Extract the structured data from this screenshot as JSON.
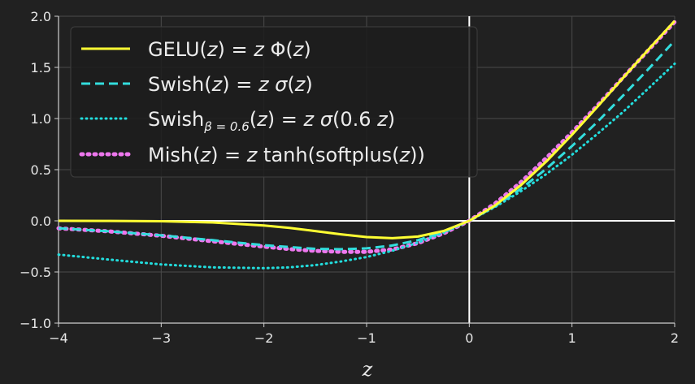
{
  "chart_data": {
    "type": "line",
    "xlabel": "z",
    "xlim": [
      -4,
      2
    ],
    "ylim": [
      -1,
      2
    ],
    "xticks": [
      -4,
      -3,
      -2,
      -1,
      0,
      1,
      2
    ],
    "yticks": [
      -1.0,
      -0.5,
      0.0,
      0.5,
      1.0,
      1.5,
      2.0
    ],
    "xtick_labels": [
      "−4",
      "−3",
      "−2",
      "−1",
      "0",
      "1",
      "2"
    ],
    "ytick_labels": [
      "−1.0",
      "−0.5",
      "0.0",
      "0.5",
      "1.0",
      "1.5",
      "2.0"
    ],
    "grid": true,
    "legend_position": "upper-left",
    "background": "#212121",
    "series": [
      {
        "name": "GELU(z) = z Φ(z)",
        "name_parts": [
          {
            "text": "GELU(",
            "italic": false
          },
          {
            "text": "z",
            "italic": true
          },
          {
            "text": ") = ",
            "italic": false
          },
          {
            "text": "z",
            "italic": true
          },
          {
            "text": " Φ(",
            "italic": false
          },
          {
            "text": "z",
            "italic": true
          },
          {
            "text": ")",
            "italic": false
          }
        ],
        "color": "#ffff33",
        "style": "solid",
        "x": [
          -4,
          -3.5,
          -3,
          -2.5,
          -2,
          -1.75,
          -1.5,
          -1.25,
          -1,
          -0.75,
          -0.5,
          -0.25,
          0,
          0.25,
          0.5,
          0.75,
          1,
          1.25,
          1.5,
          1.75,
          2
        ],
        "y": [
          -0.0001,
          -0.0008,
          -0.004,
          -0.016,
          -0.045,
          -0.07,
          -0.1,
          -0.132,
          -0.159,
          -0.17,
          -0.154,
          -0.099,
          0,
          0.149,
          0.346,
          0.58,
          0.841,
          1.118,
          1.4,
          1.68,
          1.955
        ]
      },
      {
        "name": "Swish(z) = z σ(z)",
        "name_parts": [
          {
            "text": "Swish(",
            "italic": false
          },
          {
            "text": "z",
            "italic": true
          },
          {
            "text": ") = ",
            "italic": false
          },
          {
            "text": "z σ",
            "italic": true
          },
          {
            "text": "(",
            "italic": false
          },
          {
            "text": "z",
            "italic": true
          },
          {
            "text": ")",
            "italic": false
          }
        ],
        "color": "#33dddd",
        "style": "dashed",
        "x": [
          -4,
          -3.5,
          -3,
          -2.5,
          -2,
          -1.75,
          -1.5,
          -1.25,
          -1,
          -0.75,
          -0.5,
          -0.25,
          0,
          0.25,
          0.5,
          0.75,
          1,
          1.25,
          1.5,
          1.75,
          2
        ],
        "y": [
          -0.072,
          -0.103,
          -0.142,
          -0.189,
          -0.238,
          -0.256,
          -0.274,
          -0.278,
          -0.269,
          -0.241,
          -0.189,
          -0.109,
          0,
          0.141,
          0.311,
          0.509,
          0.731,
          0.97,
          1.227,
          1.49,
          1.762
        ]
      },
      {
        "name": "Swish β = 0.6 (z) = z σ(0.6 z)",
        "name_parts": [
          {
            "text": "Swish",
            "italic": false
          },
          {
            "text": "β = 0.6",
            "italic": true,
            "subscript": true
          },
          {
            "text": "(",
            "italic": false
          },
          {
            "text": "z",
            "italic": true
          },
          {
            "text": ") = ",
            "italic": false
          },
          {
            "text": "z σ",
            "italic": true
          },
          {
            "text": "(0.6 ",
            "italic": false
          },
          {
            "text": "z",
            "italic": true
          },
          {
            "text": ")",
            "italic": false
          }
        ],
        "color": "#22dddd",
        "style": "dotted",
        "x": [
          -4,
          -3.5,
          -3,
          -2.5,
          -2,
          -1.75,
          -1.5,
          -1.25,
          -1,
          -0.75,
          -0.5,
          -0.25,
          0,
          0.25,
          0.5,
          0.75,
          1,
          1.25,
          1.5,
          1.75,
          2
        ],
        "y": [
          -0.33,
          -0.379,
          -0.426,
          -0.455,
          -0.463,
          -0.455,
          -0.433,
          -0.398,
          -0.354,
          -0.293,
          -0.213,
          -0.116,
          0,
          0.134,
          0.287,
          0.457,
          0.646,
          0.852,
          1.067,
          1.3,
          1.536
        ]
      },
      {
        "name": "Mish(z) = z tanh(softplus(z))",
        "name_parts": [
          {
            "text": "Mish(",
            "italic": false
          },
          {
            "text": "z",
            "italic": true
          },
          {
            "text": ") = ",
            "italic": false
          },
          {
            "text": "z",
            "italic": true
          },
          {
            "text": " tanh(softplus(",
            "italic": false
          },
          {
            "text": "z",
            "italic": true
          },
          {
            "text": "))",
            "italic": false
          }
        ],
        "color": "#ee77ee",
        "style": "dotted",
        "x": [
          -4,
          -3.5,
          -3,
          -2.5,
          -2,
          -1.75,
          -1.5,
          -1.25,
          -1,
          -0.75,
          -0.5,
          -0.25,
          0,
          0.25,
          0.5,
          0.75,
          1,
          1.25,
          1.5,
          1.75,
          2
        ],
        "y": [
          -0.073,
          -0.104,
          -0.146,
          -0.2,
          -0.252,
          -0.276,
          -0.294,
          -0.303,
          -0.303,
          -0.28,
          -0.218,
          -0.122,
          0,
          0.168,
          0.375,
          0.614,
          0.865,
          1.13,
          1.404,
          1.675,
          1.944
        ]
      }
    ]
  }
}
